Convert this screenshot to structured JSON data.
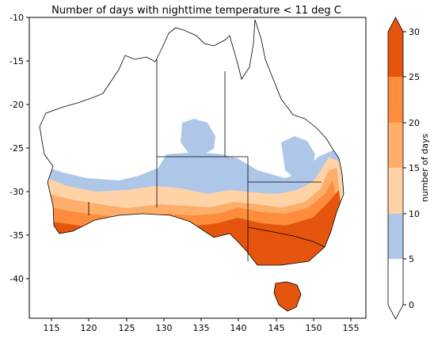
{
  "chart_data": {
    "type": "heatmap",
    "title": "Number of days with nighttime temperature < 11 deg C",
    "xlim": [
      112,
      156
    ],
    "ylim": [
      -44.5,
      -10
    ],
    "x_ticks": [
      115,
      120,
      125,
      130,
      135,
      140,
      145,
      150,
      155
    ],
    "y_ticks": [
      -10,
      -15,
      -20,
      -25,
      -30,
      -35,
      -40
    ],
    "colorbar": {
      "label": "number of days",
      "levels": [
        0,
        5,
        10,
        15,
        20,
        25,
        30
      ],
      "colors": [
        "#ffffff",
        "#aec7e8",
        "#ffd3a6",
        "#fdae6b",
        "#fd8d3c",
        "#e6550d"
      ],
      "extend_max_color": "#e6550d",
      "extend": "both"
    },
    "grid": false
  }
}
